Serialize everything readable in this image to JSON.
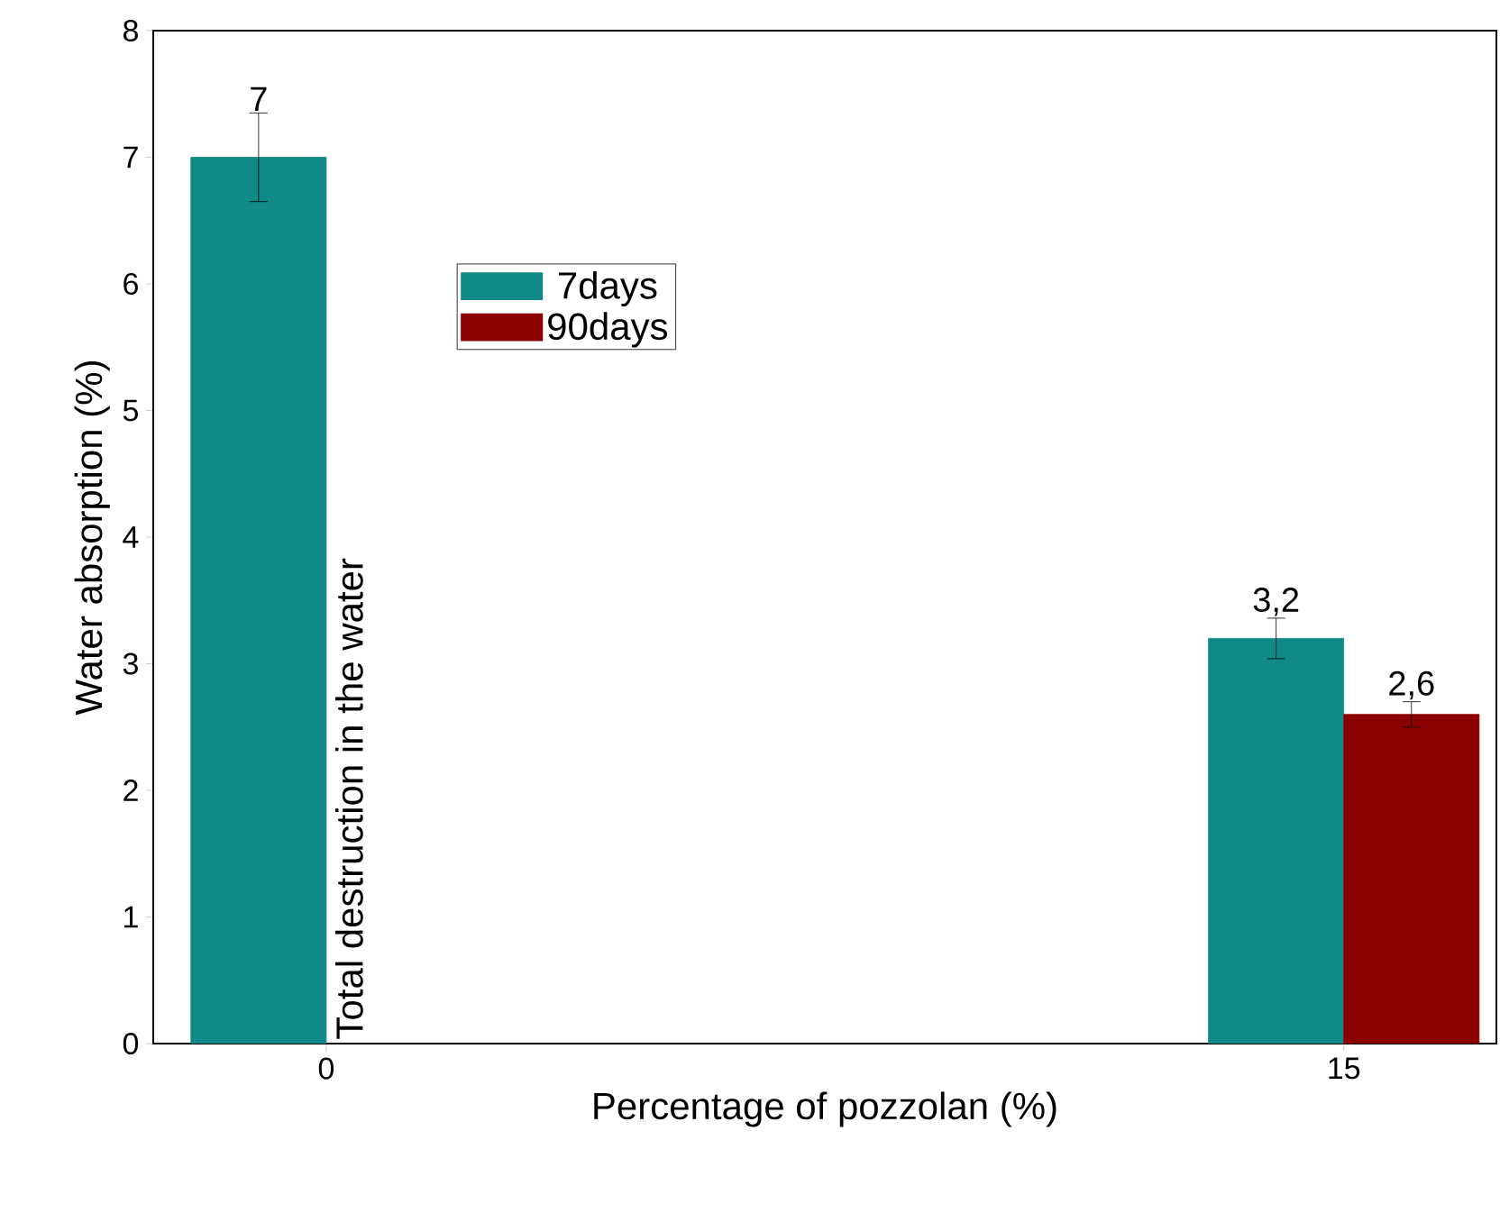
{
  "chart_data": {
    "type": "bar",
    "xlabel": "Percentage of pozzolan (%)",
    "ylabel": "Water absorption (%)",
    "categories": [
      "0",
      "15"
    ],
    "series": [
      {
        "name": "7days",
        "color": "#0f8a88",
        "values": [
          7,
          3.2
        ],
        "errors": [
          0.35,
          0.16
        ],
        "value_labels": [
          "7",
          "3,2"
        ]
      },
      {
        "name": "90days",
        "color": "#8b0000",
        "values": [
          null,
          2.6
        ],
        "errors": [
          null,
          0.1
        ],
        "value_labels": [
          null,
          "2,6"
        ]
      }
    ],
    "ylim": [
      0,
      8
    ],
    "yticks": [
      0,
      1,
      2,
      3,
      4,
      5,
      6,
      7,
      8
    ],
    "legend": "top left",
    "grid": false,
    "annotations": [
      {
        "text": "Total destruction in the water",
        "x": "0",
        "y": 0
      }
    ]
  }
}
